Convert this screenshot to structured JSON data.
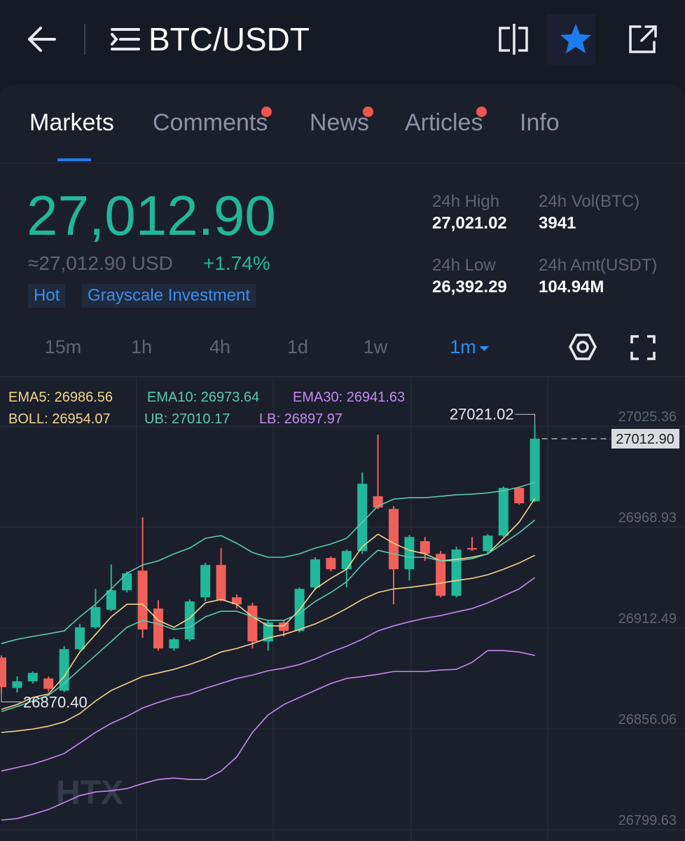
{
  "header": {
    "title": "BTC/USDT"
  },
  "tabs": [
    {
      "label": "Markets",
      "active": true
    },
    {
      "label": "Comments",
      "dot": true
    },
    {
      "label": "News",
      "dot": true
    },
    {
      "label": "Articles",
      "dot": true
    },
    {
      "label": "Info"
    }
  ],
  "price": {
    "last": "27,012.90",
    "usd": "≈27,012.90 USD",
    "change": "+1.74%"
  },
  "tags": [
    "Hot",
    "Grayscale Investment"
  ],
  "stats": [
    {
      "label": "24h High",
      "value": "27,021.02"
    },
    {
      "label": "24h Vol(BTC)",
      "value": "3941"
    },
    {
      "label": "24h Low",
      "value": "26,392.29"
    },
    {
      "label": "24h Amt(USDT)",
      "value": "104.94M"
    }
  ],
  "timeframes": [
    {
      "label": "15m"
    },
    {
      "label": "1h"
    },
    {
      "label": "4h"
    },
    {
      "label": "1d"
    },
    {
      "label": "1w"
    },
    {
      "label": "1m",
      "active": true
    }
  ],
  "chart_data": {
    "type": "candlestick",
    "ylim": [
      26792,
      27047
    ],
    "yticks": [
      26799.63,
      26856.06,
      26912.49,
      26968.93,
      27025.36
    ],
    "grid": true,
    "up_color": "#21b89a",
    "down_color": "#f0605a",
    "candles": {
      "open": [
        26890.5,
        26873.5,
        26877.2,
        26878.8,
        26872.0,
        26895.2,
        26907.4,
        26917.2,
        26928.1,
        26939.1,
        26917.9,
        26895.6,
        26900.7,
        26924.2,
        26942.3,
        26924.2,
        26919.5,
        26899.5,
        26910.1,
        26905.4,
        26929.7,
        26946.2,
        26939.9,
        26950.1,
        26980.7,
        26973.6,
        26939.9,
        26955.6,
        26948.5,
        26925.0,
        26951.7,
        26950.1,
        26958.7,
        26985.4,
        26977.9
      ],
      "high": [
        26891.7,
        26880.0,
        26882.7,
        26879.9,
        26896.8,
        26909.3,
        26928.9,
        26942.6,
        26938.7,
        26968.9,
        26922.6,
        26901.5,
        26923.0,
        26943.4,
        26951.7,
        26925.8,
        26921.1,
        26911.3,
        26911.3,
        26929.7,
        26946.6,
        26947.0,
        26950.9,
        26994.0,
        27015.2,
        26975.2,
        26959.1,
        26957.9,
        26950.1,
        26952.5,
        26957.9,
        26959.5,
        26986.2,
        26986.2,
        27021.02
      ],
      "low": [
        26870.4,
        26871.0,
        26876.0,
        26871.5,
        26871.2,
        26894.4,
        26906.6,
        26916.4,
        26926.9,
        26901.5,
        26894.4,
        26894.4,
        26899.5,
        26921.9,
        26921.9,
        26917.9,
        26895.6,
        26894.4,
        26902.3,
        26904.6,
        26928.1,
        26938.7,
        26929.7,
        26948.5,
        26973.6,
        26920.3,
        26933.6,
        26944.6,
        26924.2,
        26924.2,
        26950.1,
        26948.5,
        26957.9,
        26976.0,
        26977.5
      ],
      "close": [
        26874.0,
        26877.2,
        26881.9,
        26873.0,
        26895.2,
        26907.4,
        26918.7,
        26928.1,
        26937.6,
        26906.2,
        26895.6,
        26900.7,
        26921.9,
        26942.3,
        26922.6,
        26920.3,
        26899.5,
        26910.1,
        26905.4,
        26928.9,
        26945.4,
        26939.9,
        26950.1,
        26987.7,
        26974.4,
        26939.9,
        26957.9,
        26948.5,
        26925.0,
        26950.9,
        26950.9,
        26958.7,
        26985.4,
        26976.8,
        27012.9
      ]
    },
    "series": [
      {
        "name": "EMA5",
        "legend": "EMA5: 26986.56",
        "color": "#f3d58c",
        "values": [
          26861.5,
          26864.2,
          26868.2,
          26870.1,
          26879.9,
          26893.6,
          26903.4,
          26913.3,
          26920.3,
          26920.3,
          26911.3,
          26907.4,
          26912.5,
          26921.1,
          26923.0,
          26920.3,
          26913.3,
          26908.2,
          26908.2,
          26917.2,
          26928.9,
          26934.8,
          26939.9,
          26952.5,
          26959.5,
          26954.4,
          26950.5,
          26948.5,
          26944.6,
          26945.4,
          26946.6,
          26948.5,
          26957.2,
          26966.2,
          26979.5
        ]
      },
      {
        "name": "EMA10",
        "legend": "EMA10: 26973.64",
        "color": "#5cc8b2",
        "values": [
          26860.3,
          26863.1,
          26866.2,
          26869.4,
          26876.0,
          26883.9,
          26891.7,
          26899.5,
          26907.4,
          26911.3,
          26909.3,
          26906.2,
          26907.4,
          26913.3,
          26916.4,
          26916.4,
          26913.3,
          26911.3,
          26911.3,
          26915.2,
          26921.9,
          26926.9,
          26932.8,
          26942.6,
          26950.5,
          26948.5,
          26946.6,
          26946.6,
          26944.6,
          26944.6,
          26945.8,
          26948.5,
          26954.4,
          26960.3,
          26967.4
        ]
      },
      {
        "name": "EMA30",
        "legend": "EMA30: 26941.63",
        "color": "#c58af0",
        "values": [
          26827.0,
          26829.0,
          26830.9,
          26833.7,
          26836.8,
          26842.7,
          26848.6,
          26853.7,
          26857.6,
          26862.3,
          26865.4,
          26868.2,
          26870.1,
          26873.3,
          26876.0,
          26878.8,
          26880.7,
          26883.1,
          26884.6,
          26886.6,
          26889.7,
          26893.6,
          26896.8,
          26900.7,
          26905.4,
          26908.2,
          26910.5,
          26912.5,
          26914.0,
          26916.0,
          26917.9,
          26921.1,
          26925.0,
          26928.9,
          26935.2
        ]
      },
      {
        "name": "BOLL",
        "legend": "BOLL: 26954.07",
        "color": "#f3d58c",
        "values": [
          26848.6,
          26849.4,
          26850.5,
          26852.1,
          26854.5,
          26859.2,
          26866.2,
          26872.1,
          26876.0,
          26879.9,
          26881.9,
          26883.9,
          26886.6,
          26889.7,
          26893.6,
          26895.6,
          26898.3,
          26901.5,
          26903.4,
          26906.2,
          26909.3,
          26913.3,
          26917.9,
          26923.0,
          26926.9,
          26928.9,
          26929.7,
          26930.9,
          26932.1,
          26933.6,
          26934.8,
          26936.8,
          26939.9,
          26943.4,
          26947.7
        ]
      },
      {
        "name": "UB",
        "legend": "UB: 27010.17",
        "color": "#5cc8b2",
        "values": [
          26898.3,
          26900.7,
          26902.3,
          26903.8,
          26905.4,
          26913.3,
          26920.3,
          26928.9,
          26937.6,
          26942.3,
          26944.6,
          26948.5,
          26951.7,
          26957.2,
          26958.7,
          26954.4,
          26949.3,
          26946.6,
          26946.6,
          26948.5,
          26951.7,
          26954.0,
          26957.2,
          26966.2,
          26975.2,
          26979.1,
          26979.9,
          26979.9,
          26980.7,
          26981.5,
          26981.9,
          26982.6,
          26983.8,
          26985.8,
          26988.5
        ]
      },
      {
        "name": "LB",
        "legend": "LB: 26897.97",
        "color": "#c58af0",
        "values": [
          26799.6,
          26800.4,
          26802.8,
          26805.5,
          26809.4,
          26813.3,
          26815.3,
          26816.0,
          26817.2,
          26820.0,
          26822.3,
          26823.1,
          26822.3,
          26822.3,
          26827.0,
          26834.9,
          26848.6,
          26858.4,
          26864.2,
          26868.2,
          26872.1,
          26876.0,
          26878.8,
          26879.9,
          26881.1,
          26882.7,
          26882.7,
          26882.7,
          26883.5,
          26883.9,
          26887.8,
          26894.4,
          26894.4,
          26893.6,
          26891.7
        ]
      }
    ],
    "annotations": {
      "high": "27021.02",
      "low": "26870.40",
      "last": "27012.90"
    }
  },
  "watermark": "HTX"
}
